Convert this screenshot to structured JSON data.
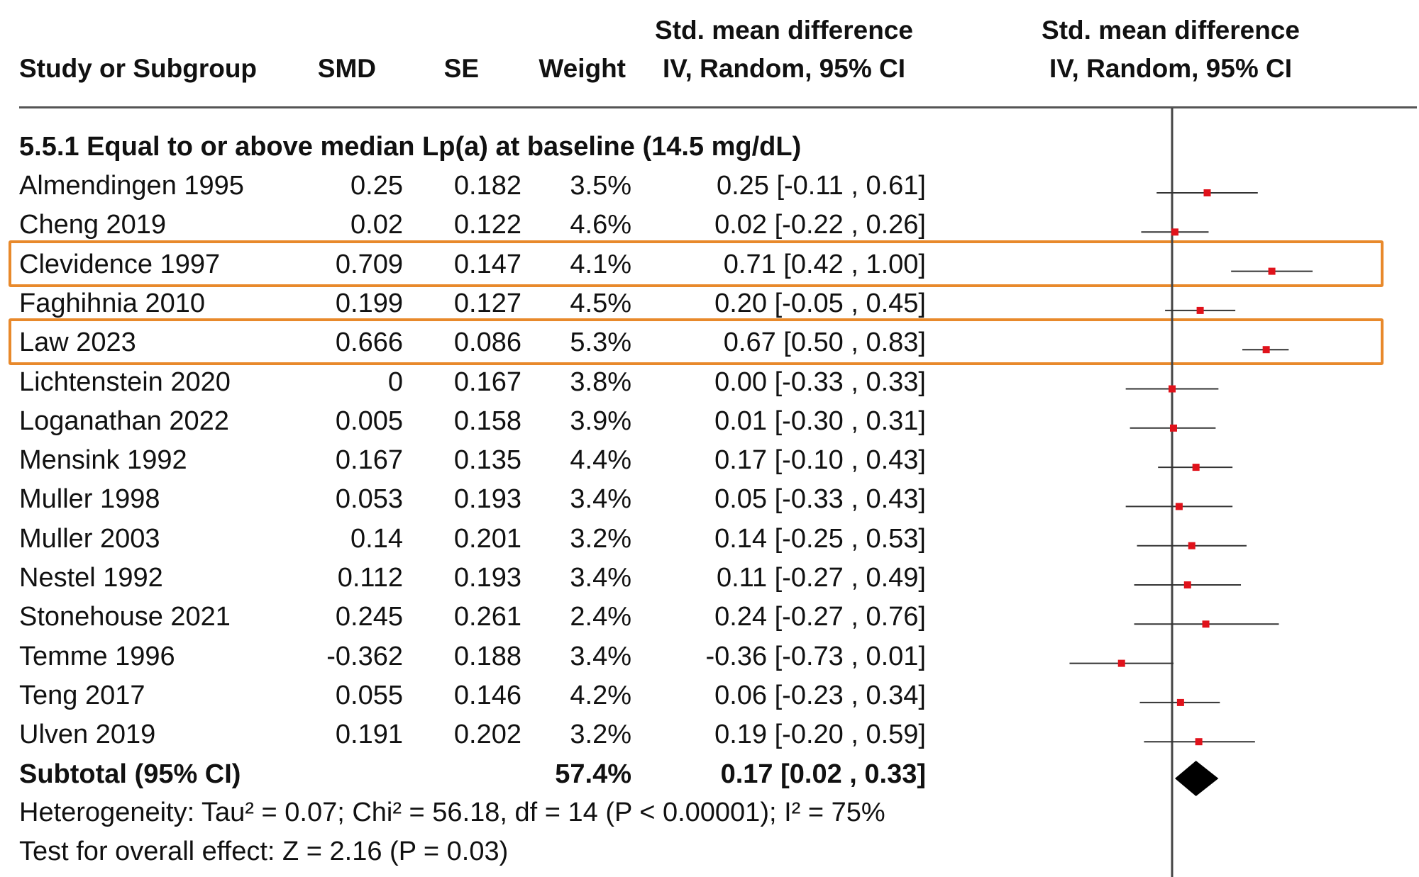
{
  "header": {
    "study": "Study or Subgroup",
    "smd": "SMD",
    "se": "SE",
    "weight": "Weight",
    "ci_line1": "Std. mean difference",
    "ci_line2": "IV, Random, 95% CI",
    "plot_line1": "Std. mean difference",
    "plot_line2": "IV, Random, 95% CI"
  },
  "subgroup_title": "5.5.1 Equal to or above median Lp(a) at baseline (14.5 mg/dL)",
  "studies": [
    {
      "name": "Almendingen 1995",
      "smd": "0.25",
      "se": "0.182",
      "weight": "3.5%",
      "ci": "0.25 [-0.11 , 0.61]",
      "highlight": false
    },
    {
      "name": "Cheng 2019",
      "smd": "0.02",
      "se": "0.122",
      "weight": "4.6%",
      "ci": "0.02 [-0.22 , 0.26]",
      "highlight": false
    },
    {
      "name": "Clevidence 1997",
      "smd": "0.709",
      "se": "0.147",
      "weight": "4.1%",
      "ci": "0.71 [0.42 , 1.00]",
      "highlight": true
    },
    {
      "name": "Faghihnia 2010",
      "smd": "0.199",
      "se": "0.127",
      "weight": "4.5%",
      "ci": "0.20 [-0.05 , 0.45]",
      "highlight": false
    },
    {
      "name": "Law 2023",
      "smd": "0.666",
      "se": "0.086",
      "weight": "5.3%",
      "ci": "0.67 [0.50 , 0.83]",
      "highlight": true
    },
    {
      "name": "Lichtenstein 2020",
      "smd": "0",
      "se": "0.167",
      "weight": "3.8%",
      "ci": "0.00 [-0.33 , 0.33]",
      "highlight": false
    },
    {
      "name": "Loganathan 2022",
      "smd": "0.005",
      "se": "0.158",
      "weight": "3.9%",
      "ci": "0.01 [-0.30 , 0.31]",
      "highlight": false
    },
    {
      "name": "Mensink 1992",
      "smd": "0.167",
      "se": "0.135",
      "weight": "4.4%",
      "ci": "0.17 [-0.10 , 0.43]",
      "highlight": false
    },
    {
      "name": "Muller 1998",
      "smd": "0.053",
      "se": "0.193",
      "weight": "3.4%",
      "ci": "0.05 [-0.33 , 0.43]",
      "highlight": false
    },
    {
      "name": "Muller 2003",
      "smd": "0.14",
      "se": "0.201",
      "weight": "3.2%",
      "ci": "0.14 [-0.25 , 0.53]",
      "highlight": false
    },
    {
      "name": "Nestel 1992",
      "smd": "0.112",
      "se": "0.193",
      "weight": "3.4%",
      "ci": "0.11 [-0.27 , 0.49]",
      "highlight": false
    },
    {
      "name": "Stonehouse 2021",
      "smd": "0.245",
      "se": "0.261",
      "weight": "2.4%",
      "ci": "0.24 [-0.27 , 0.76]",
      "highlight": false
    },
    {
      "name": "Temme 1996",
      "smd": "-0.362",
      "se": "0.188",
      "weight": "3.4%",
      "ci": "-0.36 [-0.73 , 0.01]",
      "highlight": false
    },
    {
      "name": "Teng 2017",
      "smd": "0.055",
      "se": "0.146",
      "weight": "4.2%",
      "ci": "0.06 [-0.23 , 0.34]",
      "highlight": false
    },
    {
      "name": "Ulven 2019",
      "smd": "0.191",
      "se": "0.202",
      "weight": "3.2%",
      "ci": "0.19 [-0.20 , 0.59]",
      "highlight": false
    }
  ],
  "subtotal": {
    "label": "Subtotal (95% CI)",
    "weight": "57.4%",
    "ci": "0.17 [0.02 , 0.33]"
  },
  "heterogeneity": "Heterogeneity: Tau² = 0.07; Chi² = 56.18, df = 14 (P < 0.00001); I² = 75%",
  "overall_effect": "Test for overall effect: Z = 2.16 (P = 0.03)",
  "colors": {
    "highlight_box": "#e8892b",
    "point": "#e0121b",
    "ci_line": "#333333",
    "diamond": "#000000"
  },
  "chart_data": {
    "type": "forest",
    "reference_line": 0,
    "points": [
      {
        "study": "Almendingen 1995",
        "est": 0.25,
        "lo": -0.11,
        "hi": 0.61
      },
      {
        "study": "Cheng 2019",
        "est": 0.02,
        "lo": -0.22,
        "hi": 0.26
      },
      {
        "study": "Clevidence 1997",
        "est": 0.71,
        "lo": 0.42,
        "hi": 1.0
      },
      {
        "study": "Faghihnia 2010",
        "est": 0.2,
        "lo": -0.05,
        "hi": 0.45
      },
      {
        "study": "Law 2023",
        "est": 0.67,
        "lo": 0.5,
        "hi": 0.83
      },
      {
        "study": "Lichtenstein 2020",
        "est": 0.0,
        "lo": -0.33,
        "hi": 0.33
      },
      {
        "study": "Loganathan 2022",
        "est": 0.01,
        "lo": -0.3,
        "hi": 0.31
      },
      {
        "study": "Mensink 1992",
        "est": 0.17,
        "lo": -0.1,
        "hi": 0.43
      },
      {
        "study": "Muller 1998",
        "est": 0.05,
        "lo": -0.33,
        "hi": 0.43
      },
      {
        "study": "Muller 2003",
        "est": 0.14,
        "lo": -0.25,
        "hi": 0.53
      },
      {
        "study": "Nestel 1992",
        "est": 0.11,
        "lo": -0.27,
        "hi": 0.49
      },
      {
        "study": "Stonehouse 2021",
        "est": 0.24,
        "lo": -0.27,
        "hi": 0.76
      },
      {
        "study": "Temme 1996",
        "est": -0.36,
        "lo": -0.73,
        "hi": 0.01
      },
      {
        "study": "Teng 2017",
        "est": 0.06,
        "lo": -0.23,
        "hi": 0.34
      },
      {
        "study": "Ulven 2019",
        "est": 0.19,
        "lo": -0.2,
        "hi": 0.59
      }
    ],
    "subtotal": {
      "est": 0.17,
      "lo": 0.02,
      "hi": 0.33
    }
  }
}
